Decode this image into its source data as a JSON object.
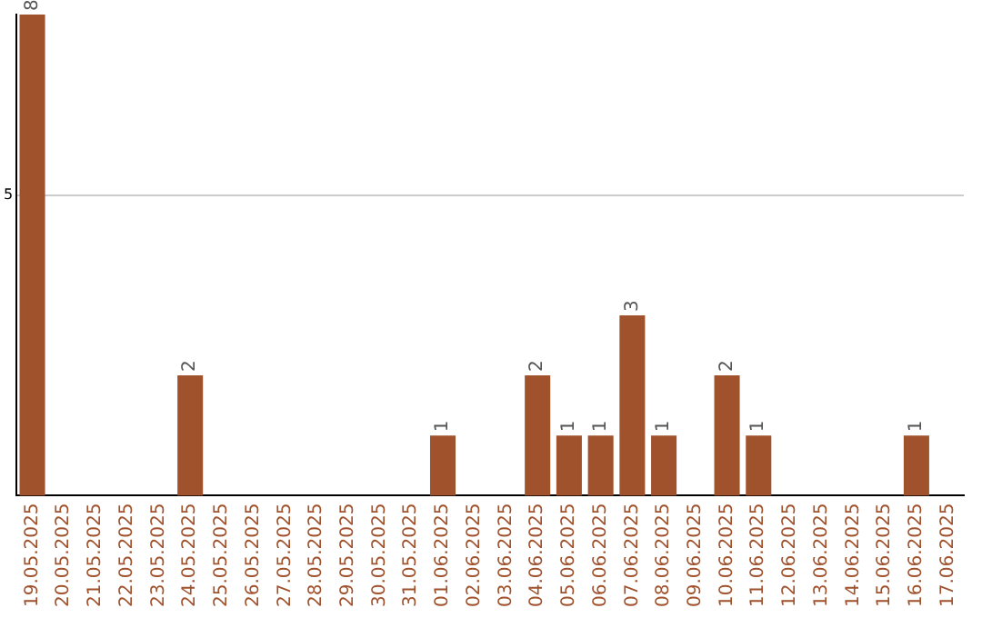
{
  "chart_data": {
    "type": "bar",
    "categories": [
      "19.05.2025",
      "20.05.2025",
      "21.05.2025",
      "22.05.2025",
      "23.05.2025",
      "24.05.2025",
      "25.05.2025",
      "26.05.2025",
      "27.05.2025",
      "28.05.2025",
      "29.05.2025",
      "30.05.2025",
      "31.05.2025",
      "01.06.2025",
      "02.06.2025",
      "03.06.2025",
      "04.06.2025",
      "05.06.2025",
      "06.06.2025",
      "07.06.2025",
      "08.06.2025",
      "09.06.2025",
      "10.06.2025",
      "11.06.2025",
      "12.06.2025",
      "13.06.2025",
      "14.06.2025",
      "15.06.2025",
      "16.06.2025",
      "17.06.2025"
    ],
    "values": [
      8,
      0,
      0,
      0,
      0,
      2,
      0,
      0,
      0,
      0,
      0,
      0,
      0,
      1,
      0,
      0,
      2,
      1,
      1,
      3,
      1,
      0,
      2,
      1,
      0,
      0,
      0,
      0,
      1,
      0
    ],
    "value_labels": [
      "8",
      null,
      null,
      null,
      null,
      "2",
      null,
      null,
      null,
      null,
      null,
      null,
      null,
      "1",
      null,
      null,
      "2",
      "1",
      "1",
      "3",
      "1",
      null,
      "2",
      "1",
      null,
      null,
      null,
      null,
      "1",
      null
    ],
    "color": "#a0522d",
    "ylim": [
      0,
      8
    ],
    "yticks": [
      5
    ],
    "grid": "y",
    "legend": false
  }
}
